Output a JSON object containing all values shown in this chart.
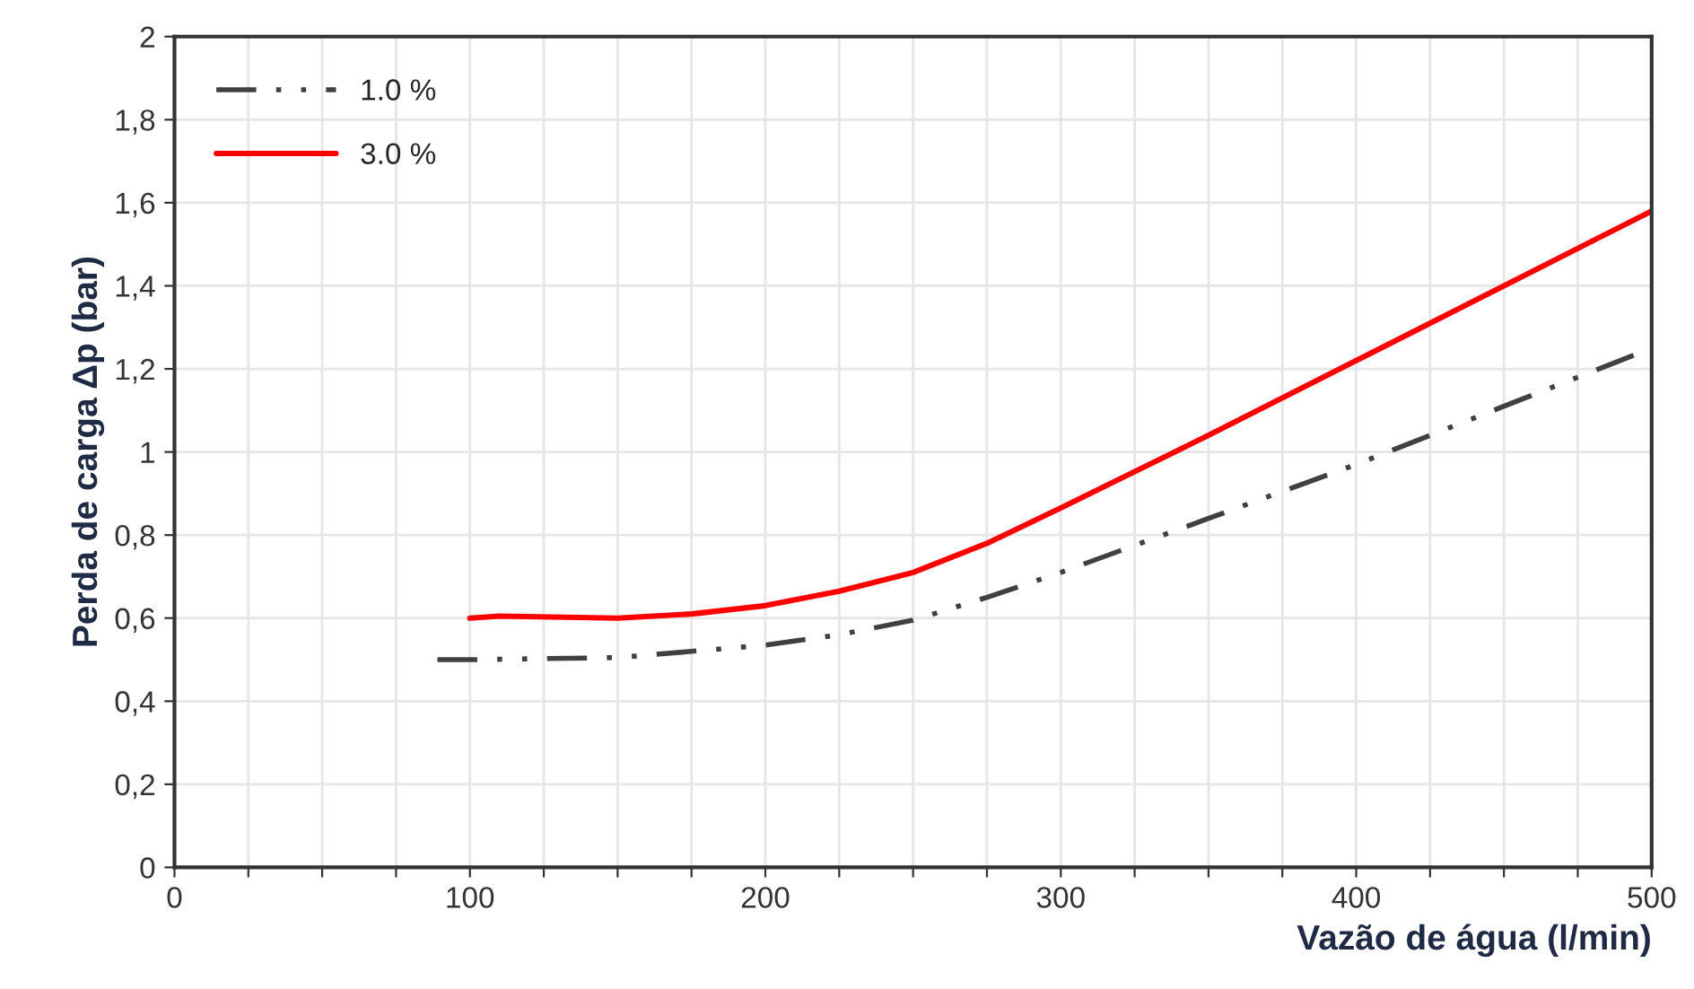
{
  "chart_data": {
    "type": "line",
    "xlabel": "Vazão de água (l/min)",
    "ylabel": "Perda de carga Δp (bar)",
    "xlim": [
      0,
      500
    ],
    "ylim": [
      0,
      2
    ],
    "xticks": [
      0,
      {
        "value": 25,
        "label": null
      },
      {
        "value": 50,
        "label": null
      },
      {
        "value": 75,
        "label": null
      },
      100,
      {
        "value": 125,
        "label": null
      },
      {
        "value": 150,
        "label": null
      },
      {
        "value": 175,
        "label": null
      },
      200,
      {
        "value": 225,
        "label": null
      },
      {
        "value": 250,
        "label": null
      },
      {
        "value": 275,
        "label": null
      },
      300,
      {
        "value": 325,
        "label": null
      },
      {
        "value": 350,
        "label": null
      },
      {
        "value": 375,
        "label": null
      },
      400,
      {
        "value": 425,
        "label": null
      },
      {
        "value": 450,
        "label": null
      },
      {
        "value": 475,
        "label": null
      },
      500
    ],
    "yticks": [
      0,
      {
        "value": 0.2,
        "label": "0,2"
      },
      {
        "value": 0.4,
        "label": "0,4"
      },
      {
        "value": 0.6,
        "label": "0,6"
      },
      {
        "value": 0.8,
        "label": "0,8"
      },
      1,
      {
        "value": 1.2,
        "label": "1,2"
      },
      {
        "value": 1.4,
        "label": "1,4"
      },
      {
        "value": 1.6,
        "label": "1,6"
      },
      {
        "value": 1.8,
        "label": "1,8"
      },
      2
    ],
    "grid": true,
    "legend": "top left",
    "marker": "none",
    "series": [
      {
        "name": "1.0 %",
        "color": "#404040",
        "line_style": "dashed",
        "x": [
          89,
          100,
          150,
          200,
          225,
          250,
          275,
          300,
          350,
          400,
          450,
          500
        ],
        "values": [
          0.5,
          0.5,
          0.505,
          0.535,
          0.56,
          0.595,
          0.65,
          0.71,
          0.84,
          0.97,
          1.11,
          1.25
        ]
      },
      {
        "name": "3.0 %",
        "color": "#ff0000",
        "line_style": "solid",
        "x": [
          100,
          110,
          150,
          175,
          200,
          225,
          250,
          275,
          300,
          350,
          400,
          450,
          500
        ],
        "values": [
          0.6,
          0.605,
          0.6,
          0.61,
          0.63,
          0.665,
          0.71,
          0.78,
          0.865,
          1.04,
          1.22,
          1.4,
          1.58
        ]
      }
    ]
  }
}
